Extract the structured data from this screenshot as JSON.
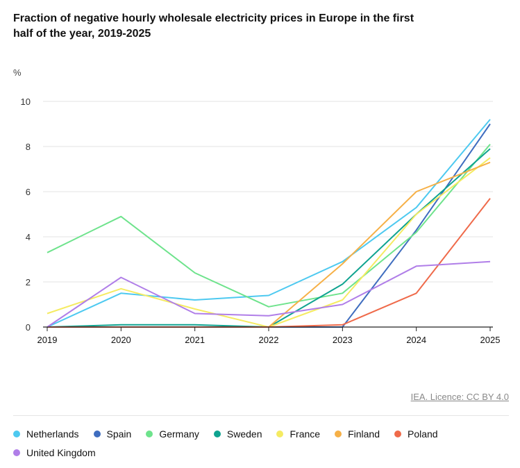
{
  "chart_data": {
    "type": "line",
    "title": "Fraction of negative hourly wholesale electricity prices in Europe in the first half of the year, 2019-2025",
    "ylabel": "%",
    "xlabel": "",
    "ylim": [
      0,
      10
    ],
    "yticks": [
      "0",
      "2",
      "4",
      "6",
      "8",
      "10"
    ],
    "categories": [
      "2019",
      "2020",
      "2021",
      "2022",
      "2023",
      "2024",
      "2025"
    ],
    "grid": true,
    "legend_position": "bottom",
    "series": [
      {
        "name": "Netherlands",
        "color": "#4dc9f0",
        "values": [
          0,
          1.5,
          1.2,
          1.4,
          2.9,
          5.3,
          9.2
        ]
      },
      {
        "name": "Spain",
        "color": "#3f6dbf",
        "values": [
          0,
          0,
          0,
          0,
          0,
          4.3,
          9.0
        ]
      },
      {
        "name": "Germany",
        "color": "#6ee38c",
        "values": [
          3.3,
          4.9,
          2.4,
          0.9,
          1.5,
          4.2,
          8.1
        ]
      },
      {
        "name": "Sweden",
        "color": "#0fa390",
        "values": [
          0,
          0.1,
          0.1,
          0,
          1.9,
          5.0,
          7.9
        ]
      },
      {
        "name": "France",
        "color": "#f5eb62",
        "values": [
          0.6,
          1.7,
          0.8,
          0,
          1.2,
          5.0,
          7.5
        ]
      },
      {
        "name": "Finland",
        "color": "#f6b047",
        "values": [
          0,
          0,
          0,
          0,
          2.8,
          6.0,
          7.3
        ]
      },
      {
        "name": "Poland",
        "color": "#ef6a4a",
        "values": [
          0,
          0,
          0,
          0,
          0.1,
          1.5,
          5.7
        ]
      },
      {
        "name": "United Kingdom",
        "color": "#b07ee8",
        "values": [
          0,
          2.2,
          0.6,
          0.5,
          1.0,
          2.7,
          2.9
        ]
      }
    ]
  },
  "source": {
    "label": "IEA. Licence: CC BY 4.0"
  }
}
